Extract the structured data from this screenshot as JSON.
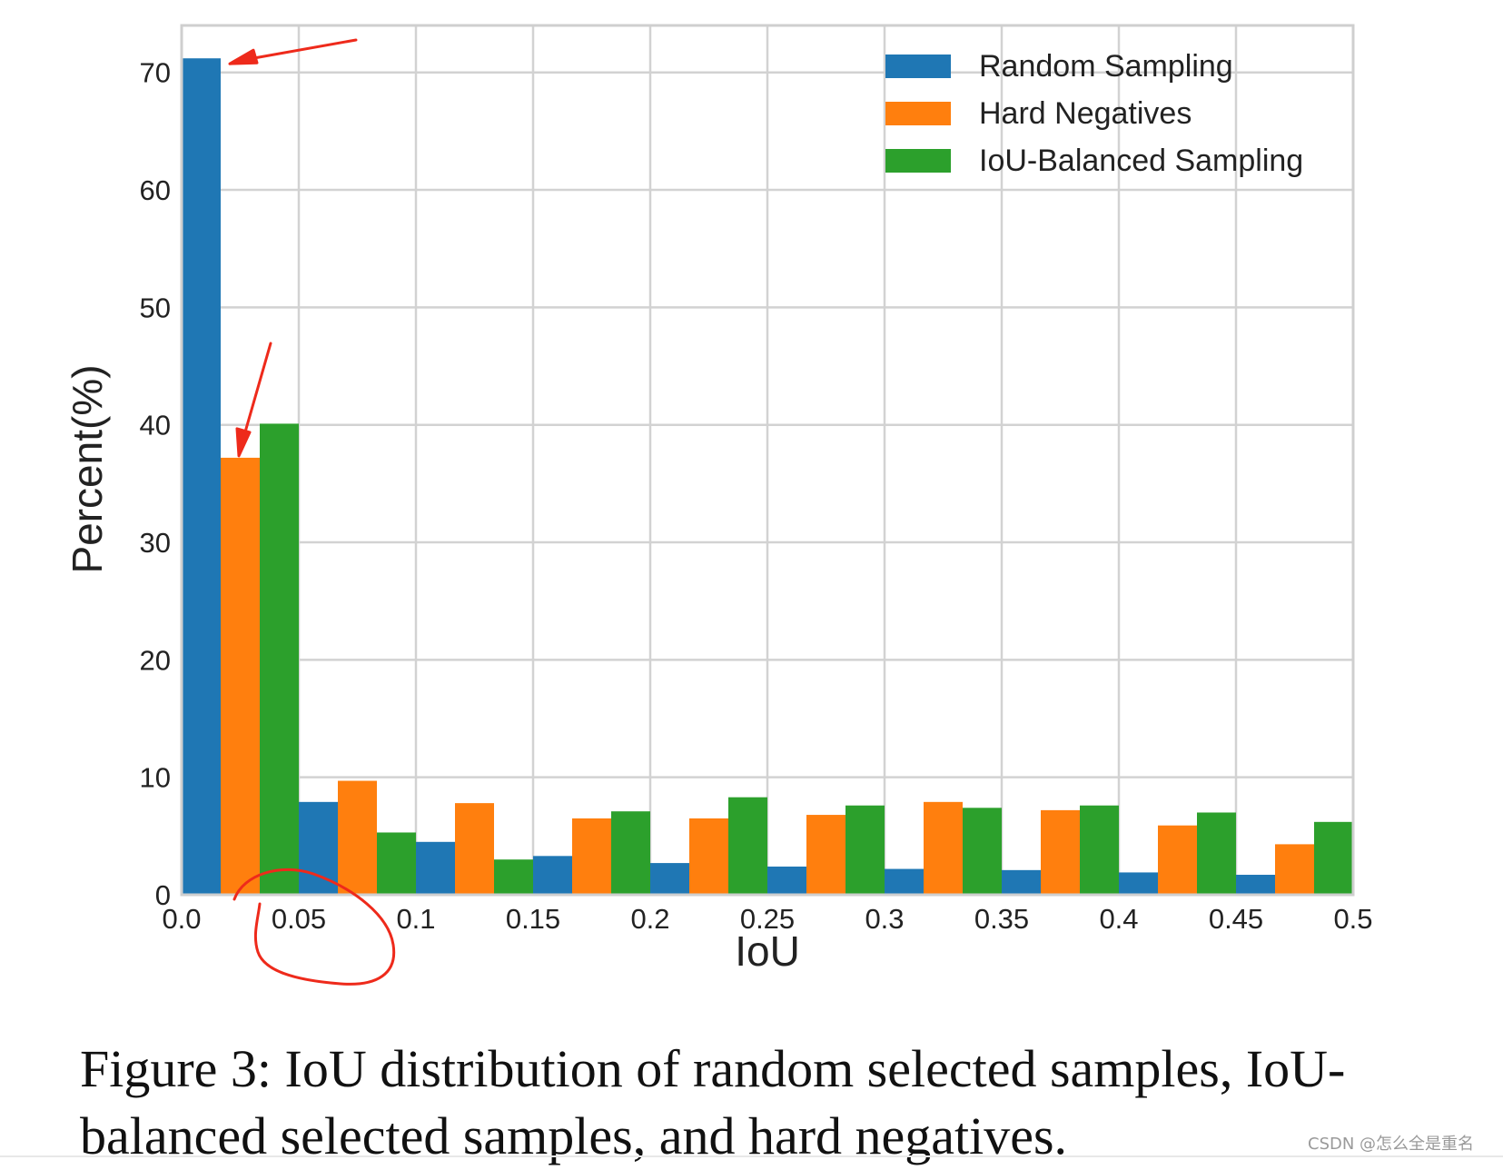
{
  "chart_data": {
    "type": "bar",
    "xlabel": "IoU",
    "ylabel": "Percent(%)",
    "xlim": [
      0.0,
      0.5
    ],
    "ylim": [
      0,
      74
    ],
    "grid": true,
    "legend_position": "top-right",
    "x_ticks": [
      "0.0",
      "0.05",
      "0.1",
      "0.15",
      "0.2",
      "0.25",
      "0.3",
      "0.35",
      "0.4",
      "0.45",
      "0.5"
    ],
    "y_ticks": [
      "0",
      "10",
      "20",
      "30",
      "40",
      "50",
      "60",
      "70"
    ],
    "bins": [
      [
        0.0,
        0.05
      ],
      [
        0.05,
        0.1
      ],
      [
        0.1,
        0.15
      ],
      [
        0.15,
        0.2
      ],
      [
        0.2,
        0.25
      ],
      [
        0.25,
        0.3
      ],
      [
        0.3,
        0.35
      ],
      [
        0.35,
        0.4
      ],
      [
        0.4,
        0.45
      ],
      [
        0.45,
        0.5
      ]
    ],
    "series": [
      {
        "name": "Random Sampling",
        "color": "#1f77b4",
        "values": [
          71.2,
          7.9,
          4.5,
          3.3,
          2.7,
          2.4,
          2.2,
          2.1,
          1.9,
          1.7
        ]
      },
      {
        "name": "Hard Negatives",
        "color": "#ff7f0e",
        "values": [
          37.2,
          9.7,
          7.8,
          6.5,
          6.5,
          6.8,
          7.9,
          7.2,
          5.9,
          4.3
        ]
      },
      {
        "name": "IoU-Balanced Sampling",
        "color": "#2ca02c",
        "values": [
          40.1,
          5.3,
          3.0,
          7.1,
          8.3,
          7.6,
          7.4,
          7.6,
          7.0,
          6.2
        ]
      }
    ]
  },
  "annotations": {
    "color": "#ee2a1b",
    "items": [
      "arrow-to-random-sampling-first-bar",
      "arrow-to-hard-negatives-first-bar",
      "circle-around-0.05-tick"
    ]
  },
  "caption": "Figure 3: IoU distribution of random selected samples, IoU-balanced selected samples, and hard negatives.",
  "watermark": "CSDN @怎么全是重名"
}
